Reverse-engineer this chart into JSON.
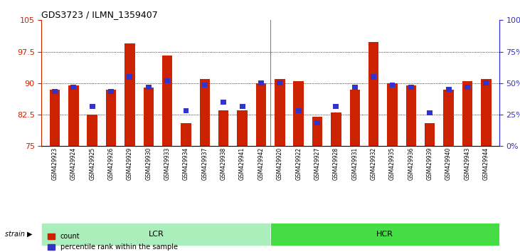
{
  "title": "GDS3723 / ILMN_1359407",
  "samples": [
    "GSM429923",
    "GSM429924",
    "GSM429925",
    "GSM429926",
    "GSM429929",
    "GSM429930",
    "GSM429933",
    "GSM429934",
    "GSM429937",
    "GSM429938",
    "GSM429941",
    "GSM429942",
    "GSM429920",
    "GSM429922",
    "GSM429927",
    "GSM429928",
    "GSM429931",
    "GSM429932",
    "GSM429935",
    "GSM429936",
    "GSM429939",
    "GSM429940",
    "GSM429943",
    "GSM429944"
  ],
  "bar_heights": [
    88.5,
    89.5,
    82.5,
    88.5,
    99.5,
    89.0,
    96.5,
    80.5,
    91.0,
    83.5,
    83.5,
    90.0,
    91.0,
    90.5,
    82.0,
    83.0,
    88.5,
    99.8,
    90.0,
    89.5,
    80.5,
    88.5,
    90.5,
    91.0
  ],
  "blue_values": [
    88.0,
    89.0,
    84.5,
    88.0,
    91.5,
    89.0,
    90.5,
    83.5,
    89.5,
    85.5,
    84.5,
    90.0,
    90.0,
    83.5,
    80.5,
    84.5,
    89.0,
    91.5,
    89.5,
    89.0,
    83.0,
    88.5,
    89.0,
    90.0
  ],
  "lcr_samples": 12,
  "hcr_samples": 12,
  "bar_color": "#CC2200",
  "blue_color": "#3333CC",
  "lcr_color": "#AAEEBB",
  "hcr_color": "#44DD44",
  "group_label_color": "#000000",
  "ylim_left": [
    75,
    105
  ],
  "ylim_right": [
    0,
    100
  ],
  "yticks_left": [
    75,
    82.5,
    90,
    97.5,
    105
  ],
  "yticks_right": [
    0,
    25,
    50,
    75,
    100
  ],
  "ytick_labels_left": [
    "75",
    "82.5",
    "90",
    "97.5",
    "105"
  ],
  "ytick_labels_right": [
    "0%",
    "25%",
    "50%",
    "75%",
    "100%"
  ],
  "strain_label": "strain",
  "lcr_label": "LCR",
  "hcr_label": "HCR",
  "legend_count": "count",
  "legend_percentile": "percentile rank within the sample"
}
